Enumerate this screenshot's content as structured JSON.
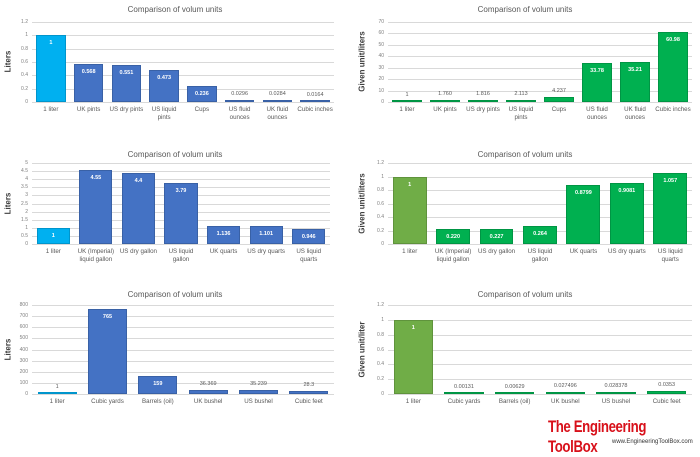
{
  "chart_data": [
    {
      "type": "bar",
      "title": "Comparison of volum units",
      "ylabel": "Liters",
      "ylim": [
        0,
        1.2
      ],
      "yticks": [
        "0",
        "0.2",
        "0.4",
        "0.6",
        "0.8",
        "1",
        "1.2"
      ],
      "grid": true,
      "categories": [
        "1 liter",
        "UK pints",
        "US dry pints",
        "US liquid pints",
        "Cups",
        "US fluid ounces",
        "UK fluid ounces",
        "Cubic inches"
      ],
      "values": [
        1,
        0.568,
        0.551,
        0.473,
        0.236,
        0.0296,
        0.0284,
        0.0164
      ],
      "data_labels": [
        "1",
        "0.568",
        "0.551",
        "0.473",
        "0.236",
        "0.0296",
        "0.0284",
        "0.0164"
      ],
      "colors": [
        "#00b0f0",
        "#4472c4",
        "#4472c4",
        "#4472c4",
        "#4472c4",
        "#4472c4",
        "#4472c4",
        "#4472c4"
      ]
    },
    {
      "type": "bar",
      "title": "Comparison of volum units",
      "ylabel": "Given unit/liters",
      "ylim": [
        0,
        70
      ],
      "yticks": [
        "0",
        "10",
        "20",
        "30",
        "40",
        "50",
        "60",
        "70"
      ],
      "grid": true,
      "categories": [
        "1 liter",
        "UK pints",
        "US dry pints",
        "US liquid pints",
        "Cups",
        "US fluid ounces",
        "UK fluid ounces",
        "Cubic inches"
      ],
      "values": [
        1,
        1.76,
        1.816,
        2.113,
        4.237,
        33.78,
        35.21,
        60.98
      ],
      "data_labels": [
        "1",
        "1.760",
        "1.816",
        "2.113",
        "4.237",
        "33.78",
        "35.21",
        "60.98"
      ],
      "colors": [
        "#00b050",
        "#00b050",
        "#00b050",
        "#00b050",
        "#00b050",
        "#00b050",
        "#00b050",
        "#00b050"
      ]
    },
    {
      "type": "bar",
      "title": "Comparison of volum units",
      "ylabel": "Liters",
      "ylim": [
        0,
        5
      ],
      "yticks": [
        "0",
        "0.5",
        "1",
        "1.5",
        "2",
        "2.5",
        "3",
        "3.5",
        "4",
        "4.5",
        "5"
      ],
      "grid": true,
      "categories": [
        "1 liter",
        "UK (Imperial) liquid gallon",
        "US dry gallon",
        "US liquid gallon",
        "UK quarts",
        "US dry quarts",
        "US liquid quarts"
      ],
      "values": [
        1,
        4.55,
        4.4,
        3.79,
        1.136,
        1.101,
        0.946
      ],
      "data_labels": [
        "1",
        "4.55",
        "4.4",
        "3.79",
        "1.136",
        "1.101",
        "0.946"
      ],
      "colors": [
        "#00b0f0",
        "#4472c4",
        "#4472c4",
        "#4472c4",
        "#4472c4",
        "#4472c4",
        "#4472c4"
      ]
    },
    {
      "type": "bar",
      "title": "Comparison of volum units",
      "ylabel": "Given unit/liters",
      "ylim": [
        0,
        1.2
      ],
      "yticks": [
        "0",
        "0.2",
        "0.4",
        "0.6",
        "0.8",
        "1",
        "1.2"
      ],
      "grid": true,
      "categories": [
        "1 liter",
        "UK (Imperial) liquid gallon",
        "US dry gallon",
        "US liquid gallon",
        "UK quarts",
        "US dry quarts",
        "US liquid quarts"
      ],
      "values": [
        1,
        0.22,
        0.227,
        0.264,
        0.8799,
        0.9081,
        1.057
      ],
      "data_labels": [
        "1",
        "0.220",
        "0.227",
        "0.264",
        "0.8799",
        "0.9081",
        "1.057"
      ],
      "colors": [
        "#70ad47",
        "#00b050",
        "#00b050",
        "#00b050",
        "#00b050",
        "#00b050",
        "#00b050"
      ]
    },
    {
      "type": "bar",
      "title": "Comparison of volum units",
      "ylabel": "Liters",
      "ylim": [
        0,
        800
      ],
      "yticks": [
        "0",
        "100",
        "200",
        "300",
        "400",
        "500",
        "600",
        "700",
        "800"
      ],
      "grid": true,
      "categories": [
        "1 liter",
        "Cubic yards",
        "Barrels (oil)",
        "UK bushel",
        "US bushel",
        "Cubic feet"
      ],
      "values": [
        1,
        765,
        159,
        36.369,
        35.239,
        28.3
      ],
      "data_labels": [
        "1",
        "765",
        "159",
        "36.369",
        "35.239",
        "28.3"
      ],
      "colors": [
        "#00b0f0",
        "#4472c4",
        "#4472c4",
        "#4472c4",
        "#4472c4",
        "#4472c4"
      ]
    },
    {
      "type": "bar",
      "title": "Comparison of volum units",
      "ylabel": "Given unit/liter",
      "ylim": [
        0,
        1.2
      ],
      "yticks": [
        "0",
        "0.2",
        "0.4",
        "0.6",
        "0.8",
        "1",
        "1.2"
      ],
      "grid": true,
      "categories": [
        "1 liter",
        "Cubic yards",
        "Barrels (oil)",
        "UK bushel",
        "US bushel",
        "Cubic feet"
      ],
      "values": [
        1,
        0.00131,
        0.00629,
        0.027496,
        0.028378,
        0.0353
      ],
      "data_labels": [
        "1",
        "0.00131",
        "0.00629",
        "0.027496",
        "0.028378",
        "0.0353"
      ],
      "colors": [
        "#70ad47",
        "#00b050",
        "#00b050",
        "#00b050",
        "#00b050",
        "#00b050"
      ]
    }
  ],
  "logo": {
    "name": "The Engineering ToolBox",
    "url": "www.EngineeringToolBox.com"
  }
}
